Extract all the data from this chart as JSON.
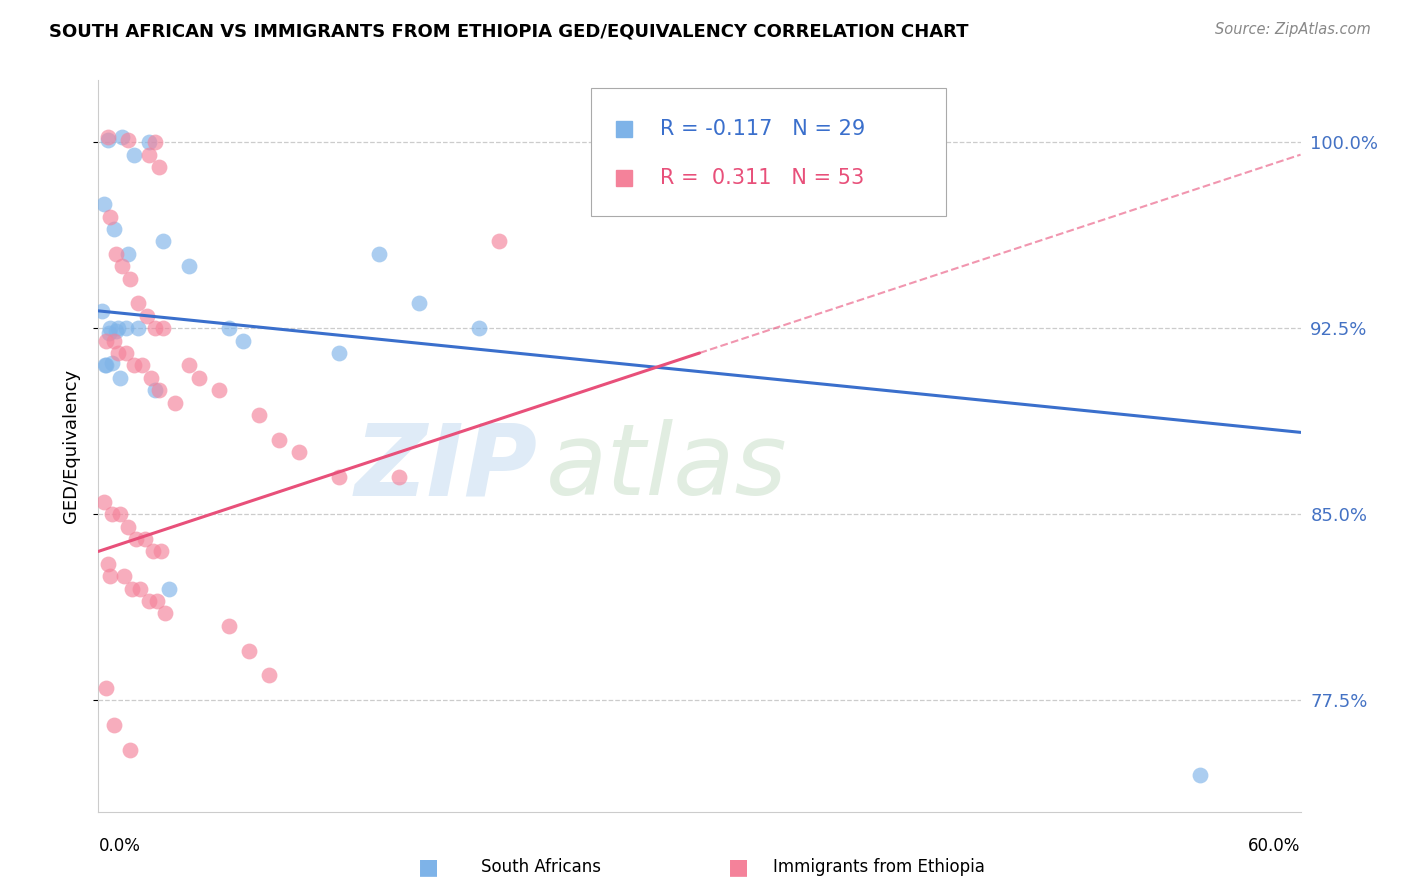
{
  "title": "SOUTH AFRICAN VS IMMIGRANTS FROM ETHIOPIA GED/EQUIVALENCY CORRELATION CHART",
  "source": "Source: ZipAtlas.com",
  "ylabel": "GED/Equivalency",
  "ytick_vals": [
    77.5,
    85.0,
    92.5,
    100.0
  ],
  "ytick_labels": [
    "77.5%",
    "85.0%",
    "92.5%",
    "100.0%"
  ],
  "xmin": 0.0,
  "xmax": 60.0,
  "ymin": 73.0,
  "ymax": 102.5,
  "blue_R": -0.117,
  "blue_N": 29,
  "pink_R": 0.311,
  "pink_N": 53,
  "blue_color": "#7EB3E8",
  "pink_color": "#F4829A",
  "blue_trendline_color": "#3A6FCC",
  "pink_trendline_color": "#E8507A",
  "blue_label": "South Africans",
  "pink_label": "Immigrants from Ethiopia",
  "watermark_text": "ZIPatlas",
  "blue_line_x0": 0.0,
  "blue_line_y0": 93.2,
  "blue_line_x1": 60.0,
  "blue_line_y1": 88.3,
  "pink_line_x0": 0.0,
  "pink_line_y0": 83.5,
  "pink_line_x1": 60.0,
  "pink_line_y1": 99.5,
  "pink_solid_end_x": 30.0,
  "blue_x": [
    0.5,
    1.2,
    1.8,
    2.5,
    0.3,
    0.8,
    1.5,
    3.2,
    4.5,
    0.2,
    0.6,
    1.0,
    1.4,
    0.9,
    2.0,
    6.5,
    7.2,
    12.0,
    14.0,
    16.0,
    19.0,
    0.4,
    0.7,
    1.1,
    2.8,
    3.5,
    0.35,
    55.0,
    0.55
  ],
  "blue_y": [
    100.1,
    100.2,
    99.5,
    100.0,
    97.5,
    96.5,
    95.5,
    96.0,
    95.0,
    93.2,
    92.5,
    92.5,
    92.5,
    92.4,
    92.5,
    92.5,
    92.0,
    91.5,
    95.5,
    93.5,
    92.5,
    91.0,
    91.1,
    90.5,
    90.0,
    82.0,
    91.0,
    74.5,
    92.3
  ],
  "pink_x": [
    0.5,
    1.5,
    2.5,
    2.8,
    3.0,
    0.6,
    0.9,
    1.2,
    1.6,
    2.0,
    2.4,
    2.8,
    3.2,
    0.4,
    0.8,
    1.0,
    1.4,
    1.8,
    2.2,
    2.6,
    3.0,
    3.8,
    4.5,
    5.0,
    6.0,
    8.0,
    9.0,
    10.0,
    12.0,
    15.0,
    0.3,
    0.7,
    1.1,
    1.5,
    1.9,
    2.3,
    2.7,
    3.1,
    0.5,
    0.6,
    1.3,
    1.7,
    2.1,
    2.5,
    2.9,
    3.3,
    6.5,
    7.5,
    8.5,
    20.0,
    0.4,
    0.8,
    1.6
  ],
  "pink_y": [
    100.2,
    100.1,
    99.5,
    100.0,
    99.0,
    97.0,
    95.5,
    95.0,
    94.5,
    93.5,
    93.0,
    92.5,
    92.5,
    92.0,
    92.0,
    91.5,
    91.5,
    91.0,
    91.0,
    90.5,
    90.0,
    89.5,
    91.0,
    90.5,
    90.0,
    89.0,
    88.0,
    87.5,
    86.5,
    86.5,
    85.5,
    85.0,
    85.0,
    84.5,
    84.0,
    84.0,
    83.5,
    83.5,
    83.0,
    82.5,
    82.5,
    82.0,
    82.0,
    81.5,
    81.5,
    81.0,
    80.5,
    79.5,
    78.5,
    96.0,
    78.0,
    76.5,
    75.5
  ]
}
